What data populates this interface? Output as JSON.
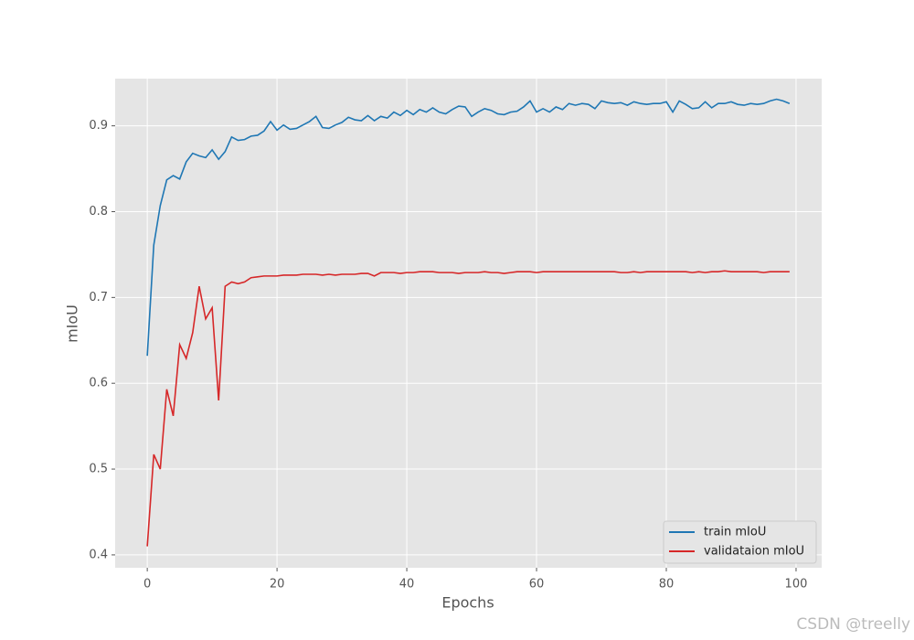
{
  "chart_data": {
    "type": "line",
    "xlabel": "Epochs",
    "ylabel": "mIoU",
    "x": [
      0,
      1,
      2,
      3,
      4,
      5,
      6,
      7,
      8,
      9,
      10,
      11,
      12,
      13,
      14,
      15,
      16,
      17,
      18,
      19,
      20,
      21,
      22,
      23,
      24,
      25,
      26,
      27,
      28,
      29,
      30,
      31,
      32,
      33,
      34,
      35,
      36,
      37,
      38,
      39,
      40,
      41,
      42,
      43,
      44,
      45,
      46,
      47,
      48,
      49,
      50,
      51,
      52,
      53,
      54,
      55,
      56,
      57,
      58,
      59,
      60,
      61,
      62,
      63,
      64,
      65,
      66,
      67,
      68,
      69,
      70,
      71,
      72,
      73,
      74,
      75,
      76,
      77,
      78,
      79,
      80,
      81,
      82,
      83,
      84,
      85,
      86,
      87,
      88,
      89,
      90,
      91,
      92,
      93,
      94,
      95,
      96,
      97,
      98,
      99
    ],
    "series": [
      {
        "name": "train mIoU",
        "color": "#1f77b4",
        "values": [
          0.632,
          0.761,
          0.807,
          0.837,
          0.842,
          0.838,
          0.858,
          0.868,
          0.865,
          0.863,
          0.872,
          0.861,
          0.87,
          0.887,
          0.883,
          0.884,
          0.888,
          0.889,
          0.894,
          0.905,
          0.895,
          0.901,
          0.896,
          0.897,
          0.901,
          0.905,
          0.911,
          0.898,
          0.897,
          0.901,
          0.904,
          0.91,
          0.907,
          0.906,
          0.912,
          0.906,
          0.911,
          0.909,
          0.916,
          0.912,
          0.918,
          0.913,
          0.919,
          0.916,
          0.921,
          0.916,
          0.914,
          0.919,
          0.923,
          0.922,
          0.911,
          0.916,
          0.92,
          0.918,
          0.914,
          0.913,
          0.916,
          0.917,
          0.922,
          0.929,
          0.916,
          0.92,
          0.916,
          0.922,
          0.919,
          0.926,
          0.924,
          0.926,
          0.925,
          0.92,
          0.929,
          0.927,
          0.926,
          0.927,
          0.924,
          0.928,
          0.926,
          0.925,
          0.926,
          0.926,
          0.928,
          0.916,
          0.929,
          0.925,
          0.92,
          0.921,
          0.928,
          0.921,
          0.926,
          0.926,
          0.928,
          0.925,
          0.924,
          0.926,
          0.925,
          0.926,
          0.929,
          0.931,
          0.929,
          0.926
        ]
      },
      {
        "name": "validataion mIoU",
        "color": "#d62728",
        "values": [
          0.41,
          0.517,
          0.5,
          0.593,
          0.562,
          0.645,
          0.629,
          0.659,
          0.713,
          0.675,
          0.688,
          0.58,
          0.713,
          0.718,
          0.716,
          0.718,
          0.723,
          0.724,
          0.725,
          0.725,
          0.725,
          0.726,
          0.726,
          0.726,
          0.727,
          0.727,
          0.727,
          0.726,
          0.727,
          0.726,
          0.727,
          0.727,
          0.727,
          0.728,
          0.728,
          0.725,
          0.729,
          0.729,
          0.729,
          0.728,
          0.729,
          0.729,
          0.73,
          0.73,
          0.73,
          0.729,
          0.729,
          0.729,
          0.728,
          0.729,
          0.729,
          0.729,
          0.73,
          0.729,
          0.729,
          0.728,
          0.729,
          0.73,
          0.73,
          0.73,
          0.729,
          0.73,
          0.73,
          0.73,
          0.73,
          0.73,
          0.73,
          0.73,
          0.73,
          0.73,
          0.73,
          0.73,
          0.73,
          0.729,
          0.729,
          0.73,
          0.729,
          0.73,
          0.73,
          0.73,
          0.73,
          0.73,
          0.73,
          0.73,
          0.729,
          0.73,
          0.729,
          0.73,
          0.73,
          0.731,
          0.73,
          0.73,
          0.73,
          0.73,
          0.73,
          0.729,
          0.73,
          0.73,
          0.73,
          0.73
        ]
      }
    ],
    "xlim": [
      -4.95,
      103.95
    ],
    "xticks": [
      0,
      20,
      40,
      60,
      80,
      100
    ],
    "ylim": [
      0.385,
      0.955
    ],
    "yticks": [
      0.4,
      0.5,
      0.6,
      0.7,
      0.8,
      0.9
    ],
    "grid": true,
    "legend": "lower right",
    "watermark": "CSDN @treelly"
  }
}
